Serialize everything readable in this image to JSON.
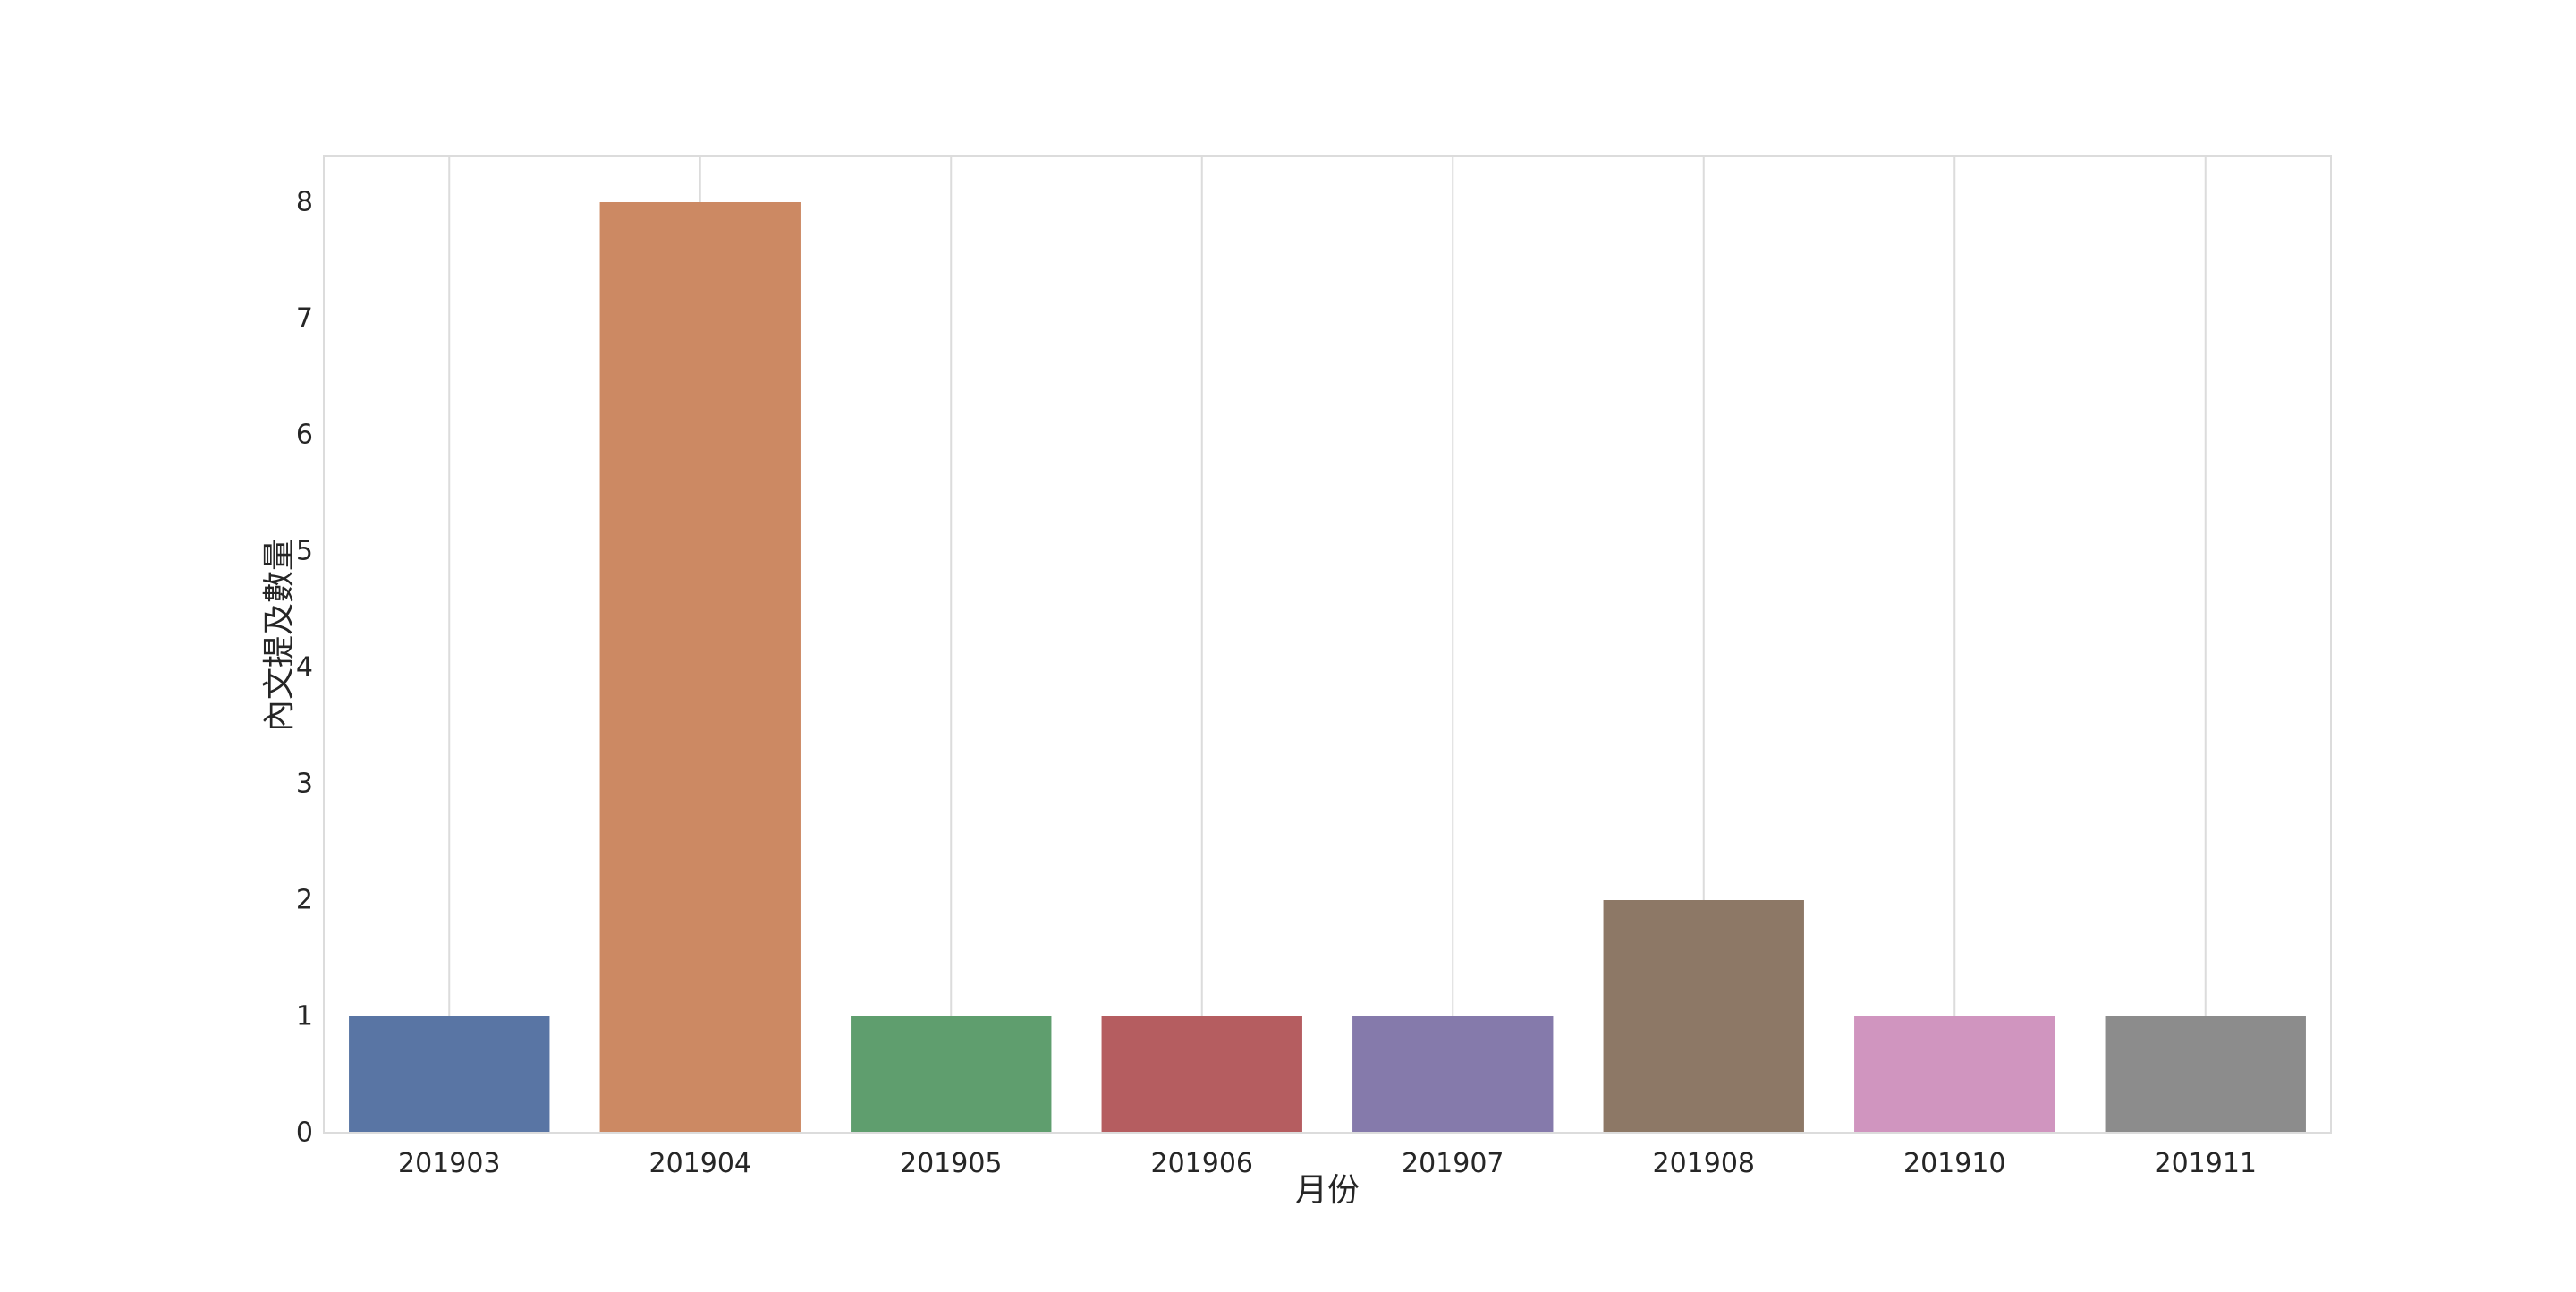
{
  "chart_data": {
    "type": "bar",
    "title": "",
    "xlabel": "月份",
    "ylabel": "內文提及數量",
    "categories": [
      "201903",
      "201904",
      "201905",
      "201906",
      "201907",
      "201908",
      "201910",
      "201911"
    ],
    "values": [
      1,
      8,
      1,
      1,
      1,
      2,
      1,
      1
    ],
    "ylim": [
      0,
      8.4
    ],
    "yticks": [
      0,
      1,
      2,
      3,
      4,
      5,
      6,
      7,
      8
    ],
    "grid": "vertical",
    "legend": "none",
    "colors": [
      "#5975a4",
      "#cc8963",
      "#5f9e6e",
      "#b55d60",
      "#857aab",
      "#8d7866",
      "#d095bf",
      "#8c8c8c"
    ],
    "gridline_color": "#dcdcdc",
    "frame_color": "#dcdcdc"
  }
}
